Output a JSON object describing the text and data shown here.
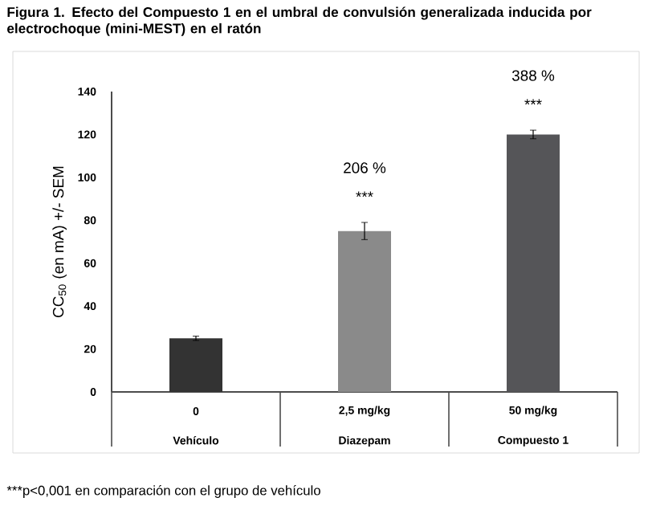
{
  "chart_data": {
    "type": "bar",
    "title": "Figura 1. Efecto del Compuesto 1 en el umbral de convulsión generalizada inducida por electrochoque (mini-MEST) en el ratón",
    "ylabel": "CC$_{50}$ (en mA) +/- SEM",
    "categories": [
      "Vehículo",
      "Diazepam",
      "Compuesto 1"
    ],
    "values": [
      25,
      75,
      120
    ],
    "errors": [
      1,
      4,
      2
    ],
    "colors": [
      "#333333",
      "#8a8a8a",
      "#555558"
    ],
    "ylim": [
      0,
      140
    ],
    "yticks": [
      0,
      20,
      40,
      60,
      80,
      100,
      120,
      140
    ],
    "grid": false,
    "annotations": [
      "0",
      "2,5 mg/kg",
      "50 mg/kg",
      "***",
      "206 %",
      "***",
      "388 %",
      "***p<0,001 en comparación con el grupo de vehículo"
    ]
  }
}
